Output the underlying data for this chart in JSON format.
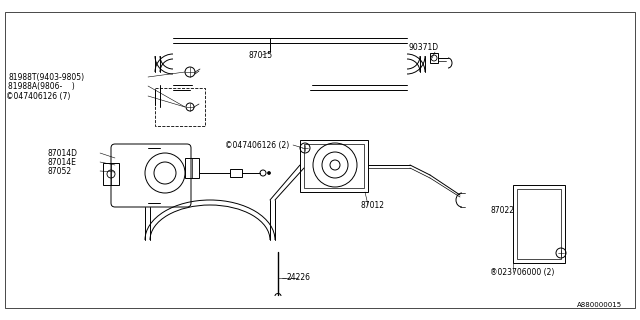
{
  "bg_color": "#ffffff",
  "line_color": "#000000",
  "diagram_id": "A880000015",
  "labels": {
    "81988T": "81988T(9403-9805)",
    "81988A": "81988A(9806-    )",
    "screw1": "©047406126 (7)",
    "87014D": "87014D",
    "87014E": "87014E",
    "87052": "87052",
    "87015": "87015",
    "screw2": "©047406126 (2)",
    "87012": "87012",
    "90371D": "90371D",
    "87022": "87022",
    "nut": "®023706000 (2)",
    "24226": "24226"
  },
  "border": [
    5,
    12,
    635,
    308
  ]
}
